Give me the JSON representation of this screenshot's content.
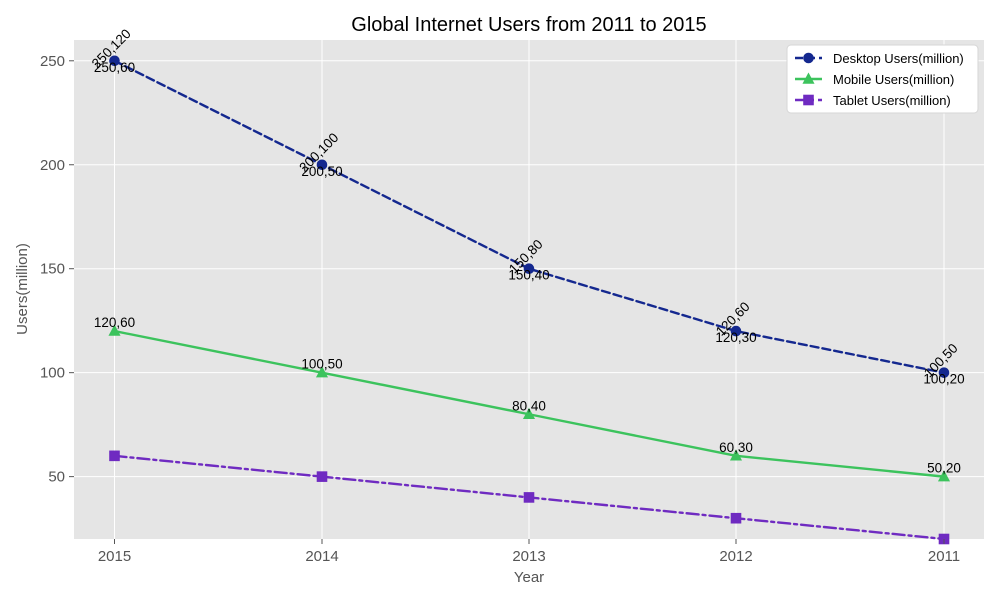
{
  "chart_data": {
    "type": "line",
    "title": "Global Internet Users from 2011 to 2015",
    "xlabel": "Year",
    "ylabel": "Users(million)",
    "categories": [
      "2015",
      "2014",
      "2013",
      "2012",
      "2011"
    ],
    "ylim": [
      20,
      260
    ],
    "yticks": [
      50,
      100,
      150,
      200,
      250
    ],
    "grid": true,
    "legend_position": "top-right",
    "series": [
      {
        "name": "Desktop Users(million)",
        "values": [
          250,
          200,
          150,
          120,
          100
        ],
        "color": "#14288f",
        "line_style": "dashed",
        "marker": "circle"
      },
      {
        "name": "Mobile Users(million)",
        "values": [
          120,
          100,
          80,
          60,
          50
        ],
        "color": "#3cc35d",
        "line_style": "solid",
        "marker": "triangle"
      },
      {
        "name": "Tablet Users(million)",
        "values": [
          60,
          50,
          40,
          30,
          20
        ],
        "color": "#6f2bc1",
        "line_style": "dashdot",
        "marker": "square"
      }
    ],
    "annotations": {
      "desktop_mobile_rotated": [
        "250,120",
        "200,100",
        "150,80",
        "120,60",
        "100,50"
      ],
      "desktop_tablet_below": [
        "250,60",
        "200,50",
        "150,40",
        "120,30",
        "100,20"
      ],
      "mobile_tablet_above": [
        "120,60",
        "100,50",
        "80,40",
        "60,30",
        "50,20"
      ]
    },
    "colors": {
      "plot_background": "#e5e5e5",
      "grid": "#ffffff",
      "axis_text": "#555555"
    }
  }
}
